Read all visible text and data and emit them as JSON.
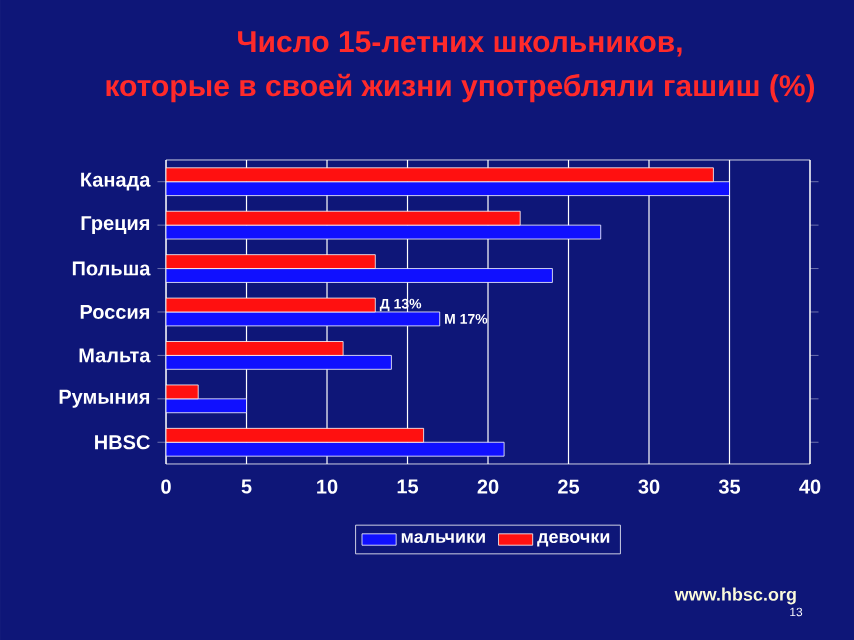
{
  "chart_data": {
    "type": "bar",
    "orientation": "horizontal",
    "title": "Число 15-летних школьников,",
    "subtitle": "которые в своей жизни употребляли гашиш (%)",
    "categories": [
      "Канада",
      "Греция",
      "Польша",
      "Россия",
      "Мальта",
      "Румыния",
      "HBSC"
    ],
    "series": [
      {
        "name": "мальчики",
        "color": "#1010ff",
        "values": [
          35,
          27,
          24,
          17,
          14,
          5,
          21
        ]
      },
      {
        "name": "девочки",
        "color": "#ff1010",
        "values": [
          34,
          22,
          13,
          13,
          11,
          2,
          16
        ]
      }
    ],
    "xlim": [
      0,
      40
    ],
    "xticks": [
      0,
      5,
      10,
      15,
      20,
      25,
      30,
      35,
      40
    ],
    "grid": "x",
    "legend": "bottom",
    "annotations": [
      {
        "text": "Д 13%",
        "x": 13,
        "y": "Россия"
      },
      {
        "text": "М 17%",
        "x": 17,
        "y": "Россия"
      },
      "www.hbsc.org",
      "13"
    ]
  }
}
